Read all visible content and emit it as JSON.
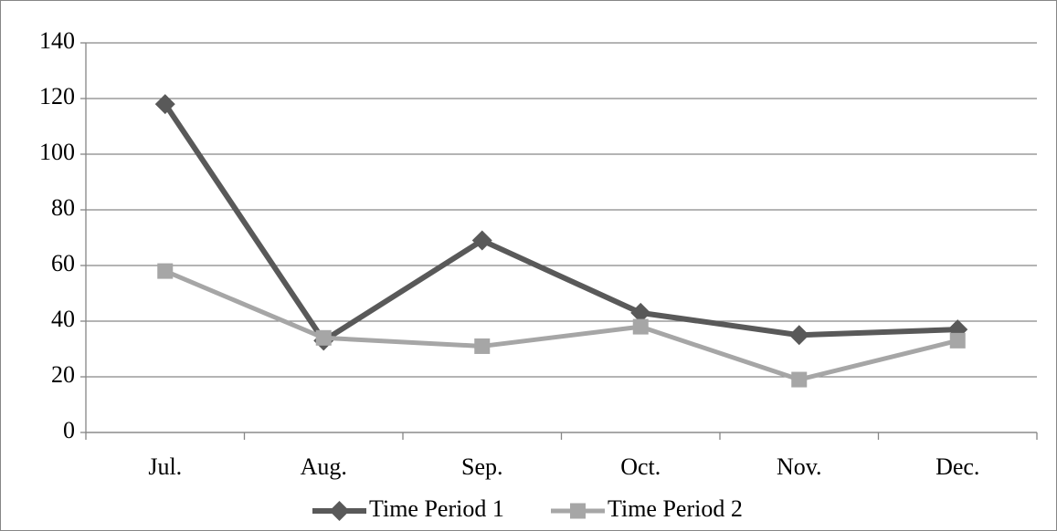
{
  "chart_data": {
    "type": "line",
    "categories": [
      "Jul.",
      "Aug.",
      "Sep.",
      "Oct.",
      "Nov.",
      "Dec."
    ],
    "series": [
      {
        "name": "Time Period 1",
        "color": "#595959",
        "marker": "diamond",
        "values": [
          118,
          33,
          69,
          43,
          35,
          37
        ]
      },
      {
        "name": "Time Period 2",
        "color": "#a6a6a6",
        "marker": "square",
        "values": [
          58,
          34,
          31,
          38,
          19,
          33
        ]
      }
    ],
    "ylim": [
      0,
      140
    ],
    "yticks": [
      0,
      20,
      40,
      60,
      80,
      100,
      120,
      140
    ],
    "grid": true,
    "legend": "bottom"
  }
}
